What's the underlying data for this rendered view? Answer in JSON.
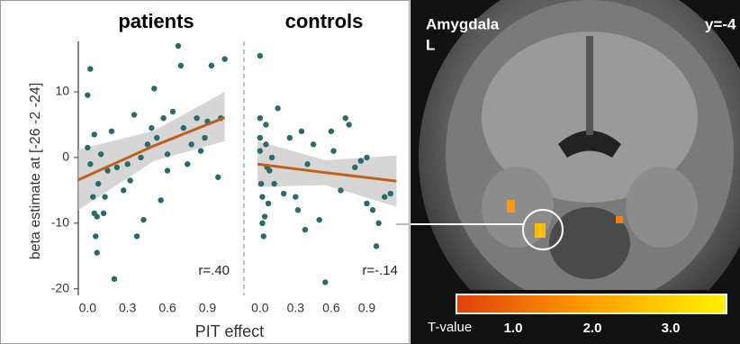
{
  "chart_data": [
    {
      "type": "scatter",
      "title": "patients",
      "ylabel": "beta estimate at [-26 -2 -24]",
      "xlabel": "PIT effect",
      "annotation": "r=.40",
      "color": "#2a6b68",
      "x": [
        0.0,
        0.0,
        0.02,
        0.02,
        0.05,
        0.05,
        0.07,
        0.06,
        0.07,
        0.08,
        0.04,
        0.1,
        0.12,
        0.13,
        0.15,
        0.18,
        0.2,
        0.22,
        0.27,
        0.3,
        0.32,
        0.35,
        0.37,
        0.4,
        0.42,
        0.45,
        0.48,
        0.5,
        0.52,
        0.55,
        0.57,
        0.6,
        0.6,
        0.64,
        0.68,
        0.7,
        0.72,
        0.75,
        0.78,
        0.82,
        0.85,
        0.88,
        0.9,
        0.93,
        0.98,
        1.0,
        1.03
      ],
      "values": [
        1.5,
        9.5,
        -1,
        13.5,
        3.5,
        -8.5,
        -9,
        -12,
        -14.5,
        -4,
        -6,
        0.5,
        -8.5,
        -6,
        -2,
        4,
        -18.5,
        -1.5,
        -5,
        -1,
        -3.5,
        6.5,
        -12,
        0,
        -9.5,
        2,
        4.5,
        10.5,
        3,
        -6.5,
        6,
        -2,
        0.5,
        7,
        17,
        14,
        4.5,
        -1,
        2,
        6,
        1,
        3,
        5.5,
        14,
        -3,
        6,
        15
      ],
      "fit": {
        "color": "#c0601a",
        "band_color": "#c8c8c8",
        "x": [
          -0.07,
          0.5,
          1.03
        ],
        "values": [
          -3.4,
          1.8,
          6.1
        ],
        "band_lower": [
          -8,
          -0.5,
          2.5
        ],
        "band_upper": [
          1.2,
          4.1,
          10
        ]
      },
      "xlim": [
        -0.07,
        1.1
      ],
      "ylim": [
        -21,
        17
      ],
      "xticks": [
        {
          "value": 0,
          "label": "0.0"
        },
        {
          "value": 0.3,
          "label": "0.3"
        },
        {
          "value": 0.6,
          "label": "0.6"
        },
        {
          "value": 0.9,
          "label": "0.9"
        }
      ],
      "yticks": [
        10,
        0,
        -10,
        -20
      ]
    },
    {
      "type": "scatter",
      "title": "controls",
      "annotation": "r=-.14",
      "color": "#2a6b68",
      "x": [
        0.0,
        0.0,
        0.0,
        0.0,
        0.01,
        0.02,
        0.02,
        0.03,
        0.04,
        0.05,
        0.05,
        0.06,
        0.07,
        0.08,
        0.1,
        0.12,
        0.15,
        0.2,
        0.25,
        0.3,
        0.32,
        0.35,
        0.38,
        0.4,
        0.45,
        0.5,
        0.55,
        0.6,
        0.62,
        0.68,
        0.72,
        0.75,
        0.8,
        0.85,
        0.9,
        0.9,
        0.95,
        1.0,
        0.98,
        1.05,
        1.1
      ],
      "values": [
        15.5,
        6,
        3,
        1,
        -4,
        -6,
        -10,
        -12,
        -9,
        5,
        2,
        -1.5,
        -7,
        -2,
        0,
        -4,
        7.5,
        -5.5,
        3,
        -6,
        -8,
        4,
        -11,
        -1,
        2,
        -9.5,
        -19,
        4,
        1,
        -5,
        6,
        5,
        -1.5,
        -0.5,
        0,
        -7,
        -8,
        -10,
        -13.5,
        -6,
        -5.5
      ],
      "fit": {
        "color": "#c0601a",
        "band_color": "#c8c8c8",
        "x": [
          -0.02,
          0.55,
          1.15
        ],
        "values": [
          -1,
          -2.3,
          -3.6
        ],
        "band_lower": [
          -4.5,
          -4.2,
          -7.5
        ],
        "band_upper": [
          2.5,
          -0.4,
          0.3
        ]
      },
      "xlim": [
        -0.12,
        1.2
      ],
      "ylim": [
        -21,
        17
      ],
      "xticks": [
        {
          "value": 0,
          "label": "0.0"
        },
        {
          "value": 0.3,
          "label": "0.3"
        },
        {
          "value": 0.6,
          "label": "0.6"
        },
        {
          "value": 0.9,
          "label": "0.9"
        }
      ]
    }
  ],
  "brain_panel": {
    "region": "Amygdala",
    "hemisphere": "L",
    "slice": "y=-4",
    "colorbar": {
      "label": "T-value",
      "ticks": [
        "1.0",
        "2.0",
        "3.0"
      ]
    }
  }
}
